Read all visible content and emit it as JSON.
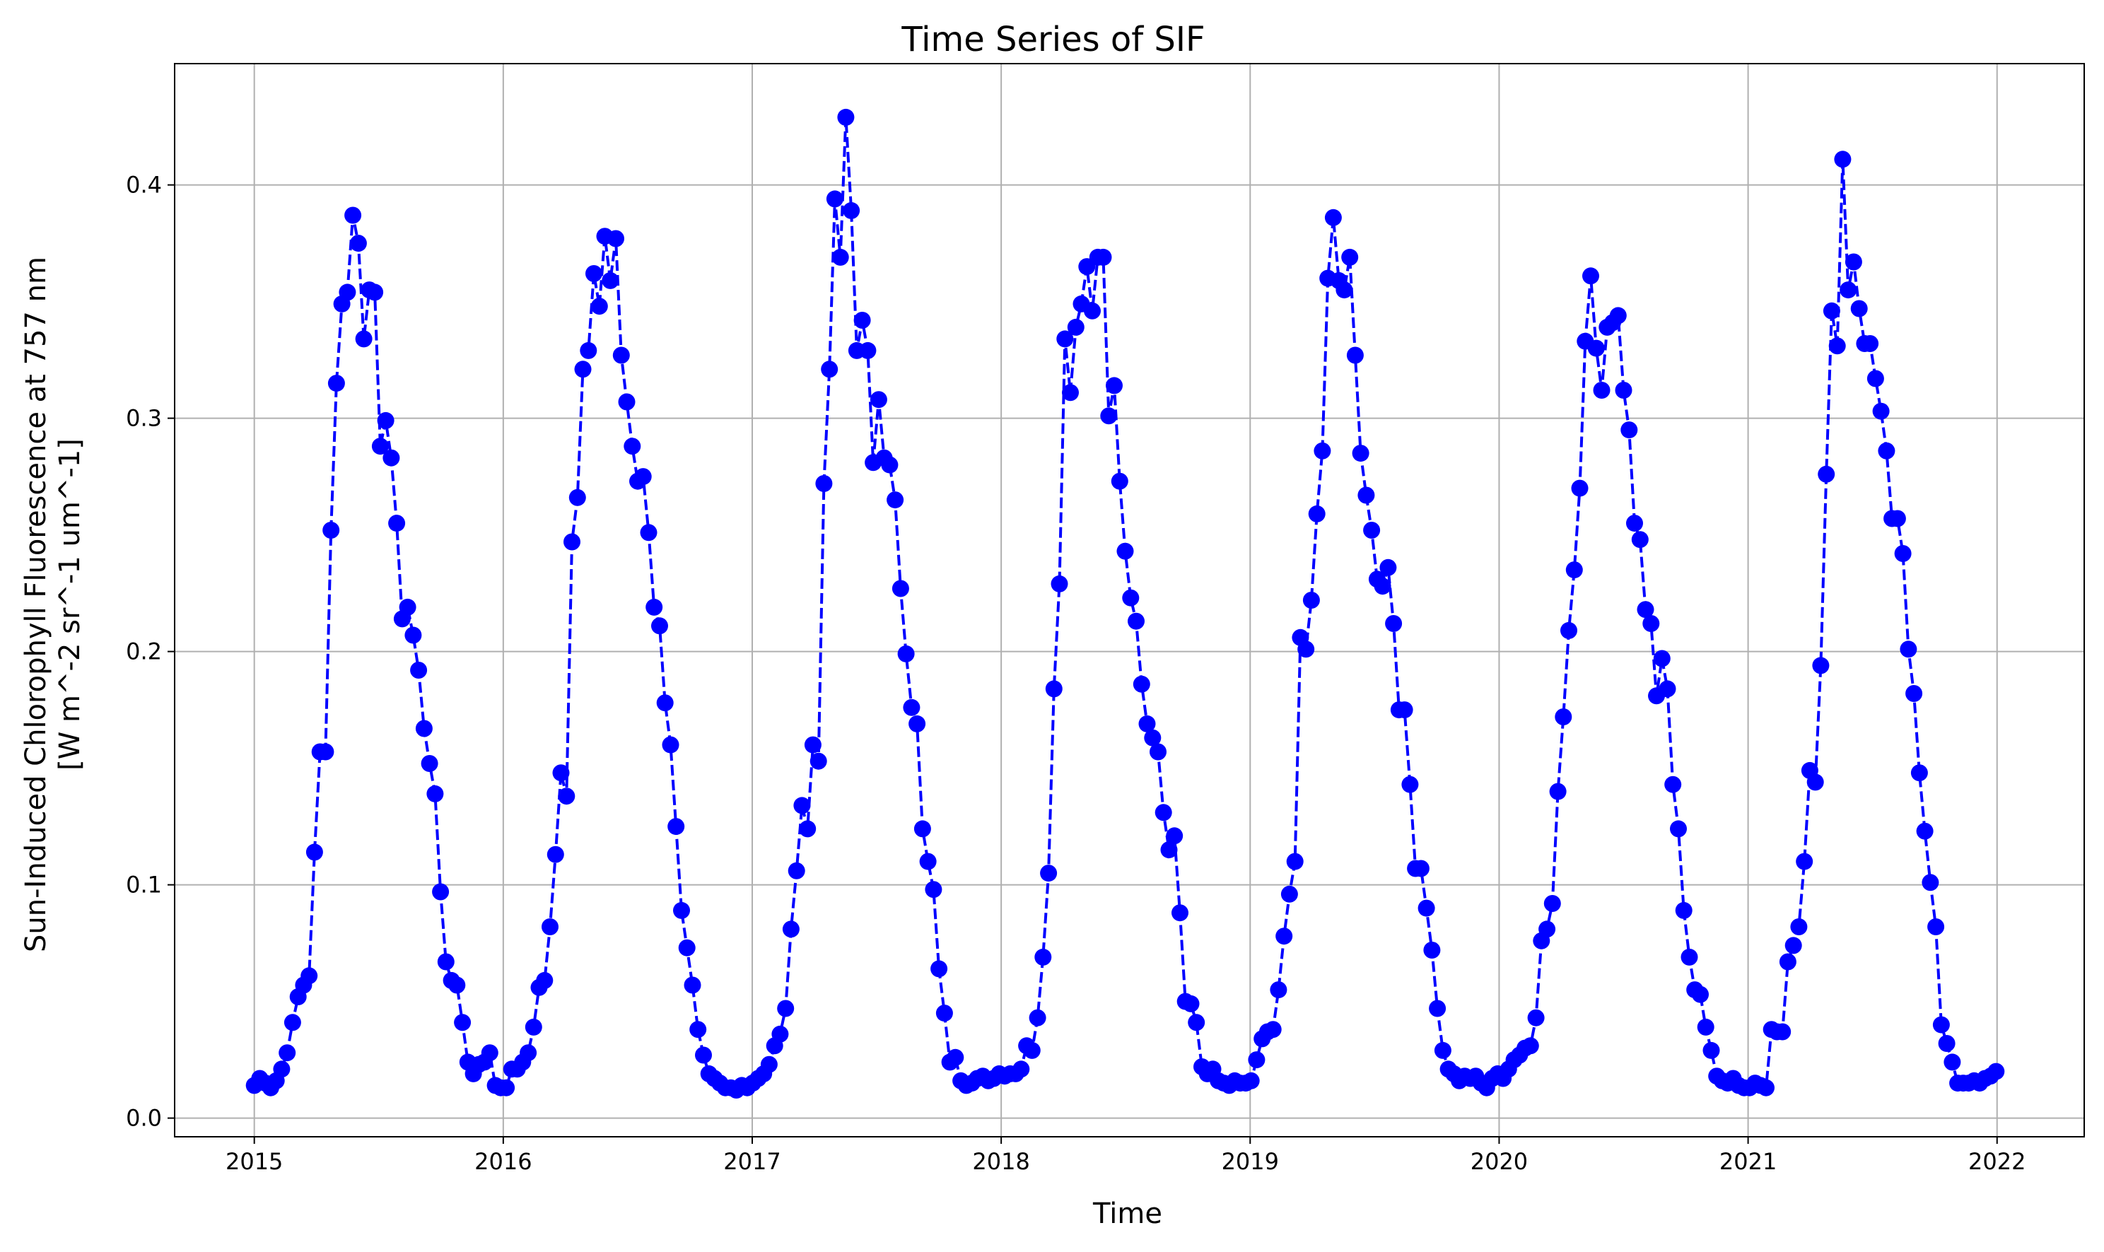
{
  "chart_data": {
    "type": "line",
    "title": "Time Series of SIF",
    "xlabel": "Time",
    "ylabel_line1": "Sun-Induced Chlorophyll Fluorescence at 757 nm",
    "ylabel_line2": "[W m^-2 sr^-1 um^-1]",
    "xlim": [
      2014.68,
      2022.35
    ],
    "ylim": [
      -0.008,
      0.452
    ],
    "x_ticks": [
      2015,
      2016,
      2017,
      2018,
      2019,
      2020,
      2021,
      2022
    ],
    "x_tick_labels": [
      "2015",
      "2016",
      "2017",
      "2018",
      "2019",
      "2020",
      "2021",
      "2022"
    ],
    "y_ticks": [
      0.0,
      0.1,
      0.2,
      0.3,
      0.4
    ],
    "y_tick_labels": [
      "0.0",
      "0.1",
      "0.2",
      "0.3",
      "0.4"
    ],
    "grid": true,
    "line_color": "#0000ff",
    "line_style": "dashed",
    "marker": "circle",
    "series": [
      {
        "x": [
          2015.0,
          2015.022,
          2015.044,
          2015.066,
          2015.088,
          2015.11,
          2015.132,
          2015.154,
          2015.176,
          2015.198,
          2015.22,
          2015.242,
          2015.264,
          2015.286,
          2015.308,
          2015.33,
          2015.352,
          2015.374,
          2015.396,
          2015.418,
          2015.44,
          2015.462,
          2015.484,
          2015.506,
          2015.528,
          2015.55,
          2015.572,
          2015.594,
          2015.616,
          2015.638,
          2015.66,
          2015.682,
          2015.704,
          2015.726,
          2015.748,
          2015.77,
          2015.792,
          2015.814,
          2015.836,
          2015.858,
          2015.88,
          2015.902,
          2015.924,
          2015.946,
          2015.968,
          2015.99,
          2016.012,
          2016.034,
          2016.056,
          2016.078,
          2016.1,
          2016.122,
          2016.144,
          2016.166,
          2016.188,
          2016.21,
          2016.232,
          2016.254,
          2016.276,
          2016.298,
          2016.32,
          2016.342,
          2016.364,
          2016.386,
          2016.408,
          2016.43,
          2016.452,
          2016.474,
          2016.496,
          2016.518,
          2016.54,
          2016.562,
          2016.584,
          2016.606,
          2016.628,
          2016.65,
          2016.672,
          2016.694,
          2016.716,
          2016.738,
          2016.76,
          2016.782,
          2016.804,
          2016.826,
          2016.848,
          2016.87,
          2016.892,
          2016.914,
          2016.936,
          2016.958,
          2016.98,
          2017.002,
          2017.024,
          2017.046,
          2017.068,
          2017.09,
          2017.112,
          2017.134,
          2017.156,
          2017.178,
          2017.2,
          2017.222,
          2017.244,
          2017.266,
          2017.288,
          2017.31,
          2017.332,
          2017.354,
          2017.376,
          2017.398,
          2017.42,
          2017.442,
          2017.464,
          2017.486,
          2017.508,
          2017.53,
          2017.552,
          2017.574,
          2017.596,
          2017.618,
          2017.64,
          2017.662,
          2017.684,
          2017.706,
          2017.728,
          2017.75,
          2017.772,
          2017.794,
          2017.816,
          2017.838,
          2017.86,
          2017.882,
          2017.904,
          2017.926,
          2017.948,
          2017.97,
          2017.992,
          2018.014,
          2018.036,
          2018.058,
          2018.08,
          2018.102,
          2018.124,
          2018.146,
          2018.168,
          2018.19,
          2018.212,
          2018.234,
          2018.256,
          2018.278,
          2018.3,
          2018.322,
          2018.344,
          2018.366,
          2018.388,
          2018.41,
          2018.432,
          2018.454,
          2018.476,
          2018.498,
          2018.52,
          2018.542,
          2018.564,
          2018.586,
          2018.608,
          2018.63,
          2018.652,
          2018.674,
          2018.696,
          2018.718,
          2018.74,
          2018.762,
          2018.784,
          2018.806,
          2018.828,
          2018.85,
          2018.872,
          2018.894,
          2018.916,
          2018.938,
          2018.96,
          2018.982,
          2019.004,
          2019.026,
          2019.048,
          2019.07,
          2019.092,
          2019.114,
          2019.136,
          2019.158,
          2019.18,
          2019.202,
          2019.224,
          2019.246,
          2019.268,
          2019.29,
          2019.312,
          2019.334,
          2019.356,
          2019.378,
          2019.4,
          2019.422,
          2019.444,
          2019.466,
          2019.488,
          2019.51,
          2019.532,
          2019.554,
          2019.576,
          2019.598,
          2019.62,
          2019.642,
          2019.664,
          2019.686,
          2019.708,
          2019.73,
          2019.752,
          2019.774,
          2019.796,
          2019.818,
          2019.84,
          2019.862,
          2019.884,
          2019.906,
          2019.928,
          2019.95,
          2019.972,
          2019.994,
          2020.016,
          2020.038,
          2020.06,
          2020.082,
          2020.104,
          2020.126,
          2020.148,
          2020.17,
          2020.192,
          2020.214,
          2020.236,
          2020.258,
          2020.28,
          2020.302,
          2020.324,
          2020.346,
          2020.368,
          2020.39,
          2020.412,
          2020.434,
          2020.456,
          2020.478,
          2020.5,
          2020.522,
          2020.544,
          2020.566,
          2020.588,
          2020.61,
          2020.632,
          2020.654,
          2020.676,
          2020.698,
          2020.72,
          2020.742,
          2020.764,
          2020.786,
          2020.808,
          2020.83,
          2020.852,
          2020.874,
          2020.896,
          2020.918,
          2020.94,
          2020.962,
          2020.984,
          2021.006,
          2021.028,
          2021.05,
          2021.072,
          2021.094,
          2021.116,
          2021.138,
          2021.16,
          2021.182,
          2021.204,
          2021.226,
          2021.248,
          2021.27,
          2021.292,
          2021.314,
          2021.336,
          2021.358,
          2021.38,
          2021.402,
          2021.424,
          2021.446,
          2021.468,
          2021.49,
          2021.512,
          2021.534,
          2021.556,
          2021.578,
          2021.6,
          2021.622,
          2021.644,
          2021.666,
          2021.688,
          2021.71,
          2021.732,
          2021.754,
          2021.776,
          2021.798,
          2021.82,
          2021.842,
          2021.864,
          2021.886,
          2021.908,
          2021.93,
          2021.952,
          2021.974,
          2021.996
        ],
        "y": [
          0.014,
          0.017,
          0.015,
          0.013,
          0.016,
          0.021,
          0.028,
          0.041,
          0.052,
          0.057,
          0.061,
          0.114,
          0.157,
          0.157,
          0.252,
          0.315,
          0.349,
          0.354,
          0.387,
          0.375,
          0.334,
          0.355,
          0.354,
          0.288,
          0.299,
          0.283,
          0.255,
          0.214,
          0.219,
          0.207,
          0.192,
          0.167,
          0.152,
          0.139,
          0.097,
          0.067,
          0.059,
          0.057,
          0.041,
          0.024,
          0.019,
          0.023,
          0.024,
          0.028,
          0.014,
          0.013,
          0.013,
          0.021,
          0.021,
          0.024,
          0.028,
          0.039,
          0.056,
          0.059,
          0.082,
          0.113,
          0.148,
          0.138,
          0.247,
          0.266,
          0.321,
          0.329,
          0.362,
          0.348,
          0.378,
          0.359,
          0.377,
          0.327,
          0.307,
          0.288,
          0.273,
          0.275,
          0.251,
          0.219,
          0.211,
          0.178,
          0.16,
          0.125,
          0.089,
          0.073,
          0.057,
          0.038,
          0.027,
          0.019,
          0.017,
          0.015,
          0.013,
          0.013,
          0.012,
          0.014,
          0.013,
          0.015,
          0.017,
          0.019,
          0.023,
          0.031,
          0.036,
          0.047,
          0.081,
          0.106,
          0.134,
          0.124,
          0.16,
          0.153,
          0.272,
          0.321,
          0.394,
          0.369,
          0.429,
          0.389,
          0.329,
          0.342,
          0.329,
          0.281,
          0.308,
          0.283,
          0.28,
          0.265,
          0.227,
          0.199,
          0.176,
          0.169,
          0.124,
          0.11,
          0.098,
          0.064,
          0.045,
          0.024,
          0.026,
          0.016,
          0.014,
          0.015,
          0.017,
          0.018,
          0.016,
          0.017,
          0.019,
          0.018,
          0.019,
          0.019,
          0.021,
          0.031,
          0.029,
          0.043,
          0.069,
          0.105,
          0.184,
          0.229,
          0.334,
          0.311,
          0.339,
          0.349,
          0.365,
          0.346,
          0.369,
          0.369,
          0.301,
          0.314,
          0.273,
          0.243,
          0.223,
          0.213,
          0.186,
          0.169,
          0.163,
          0.157,
          0.131,
          0.115,
          0.121,
          0.088,
          0.05,
          0.049,
          0.041,
          0.022,
          0.019,
          0.021,
          0.016,
          0.015,
          0.014,
          0.016,
          0.015,
          0.015,
          0.016,
          0.025,
          0.034,
          0.037,
          0.038,
          0.055,
          0.078,
          0.096,
          0.11,
          0.206,
          0.201,
          0.222,
          0.259,
          0.286,
          0.36,
          0.386,
          0.359,
          0.355,
          0.369,
          0.327,
          0.285,
          0.267,
          0.252,
          0.231,
          0.228,
          0.236,
          0.212,
          0.175,
          0.175,
          0.143,
          0.107,
          0.107,
          0.09,
          0.072,
          0.047,
          0.029,
          0.021,
          0.019,
          0.016,
          0.018,
          0.017,
          0.018,
          0.015,
          0.013,
          0.017,
          0.019,
          0.017,
          0.021,
          0.025,
          0.027,
          0.03,
          0.031,
          0.043,
          0.076,
          0.081,
          0.092,
          0.14,
          0.172,
          0.209,
          0.235,
          0.27,
          0.333,
          0.361,
          0.33,
          0.312,
          0.339,
          0.341,
          0.344,
          0.312,
          0.295,
          0.255,
          0.248,
          0.218,
          0.212,
          0.181,
          0.197,
          0.184,
          0.143,
          0.124,
          0.089,
          0.069,
          0.055,
          0.053,
          0.039,
          0.029,
          0.018,
          0.016,
          0.015,
          0.017,
          0.014,
          0.013,
          0.013,
          0.015,
          0.014,
          0.013,
          0.038,
          0.037,
          0.037,
          0.067,
          0.074,
          0.082,
          0.11,
          0.149,
          0.144,
          0.194,
          0.276,
          0.346,
          0.331,
          0.411,
          0.355,
          0.367,
          0.347,
          0.332,
          0.332,
          0.317,
          0.303,
          0.286,
          0.257,
          0.257,
          0.242,
          0.201,
          0.182,
          0.148,
          0.123,
          0.101,
          0.082,
          0.04,
          0.032,
          0.024,
          0.015,
          0.015,
          0.015,
          0.016,
          0.015,
          0.017,
          0.018,
          0.02
        ]
      }
    ]
  }
}
